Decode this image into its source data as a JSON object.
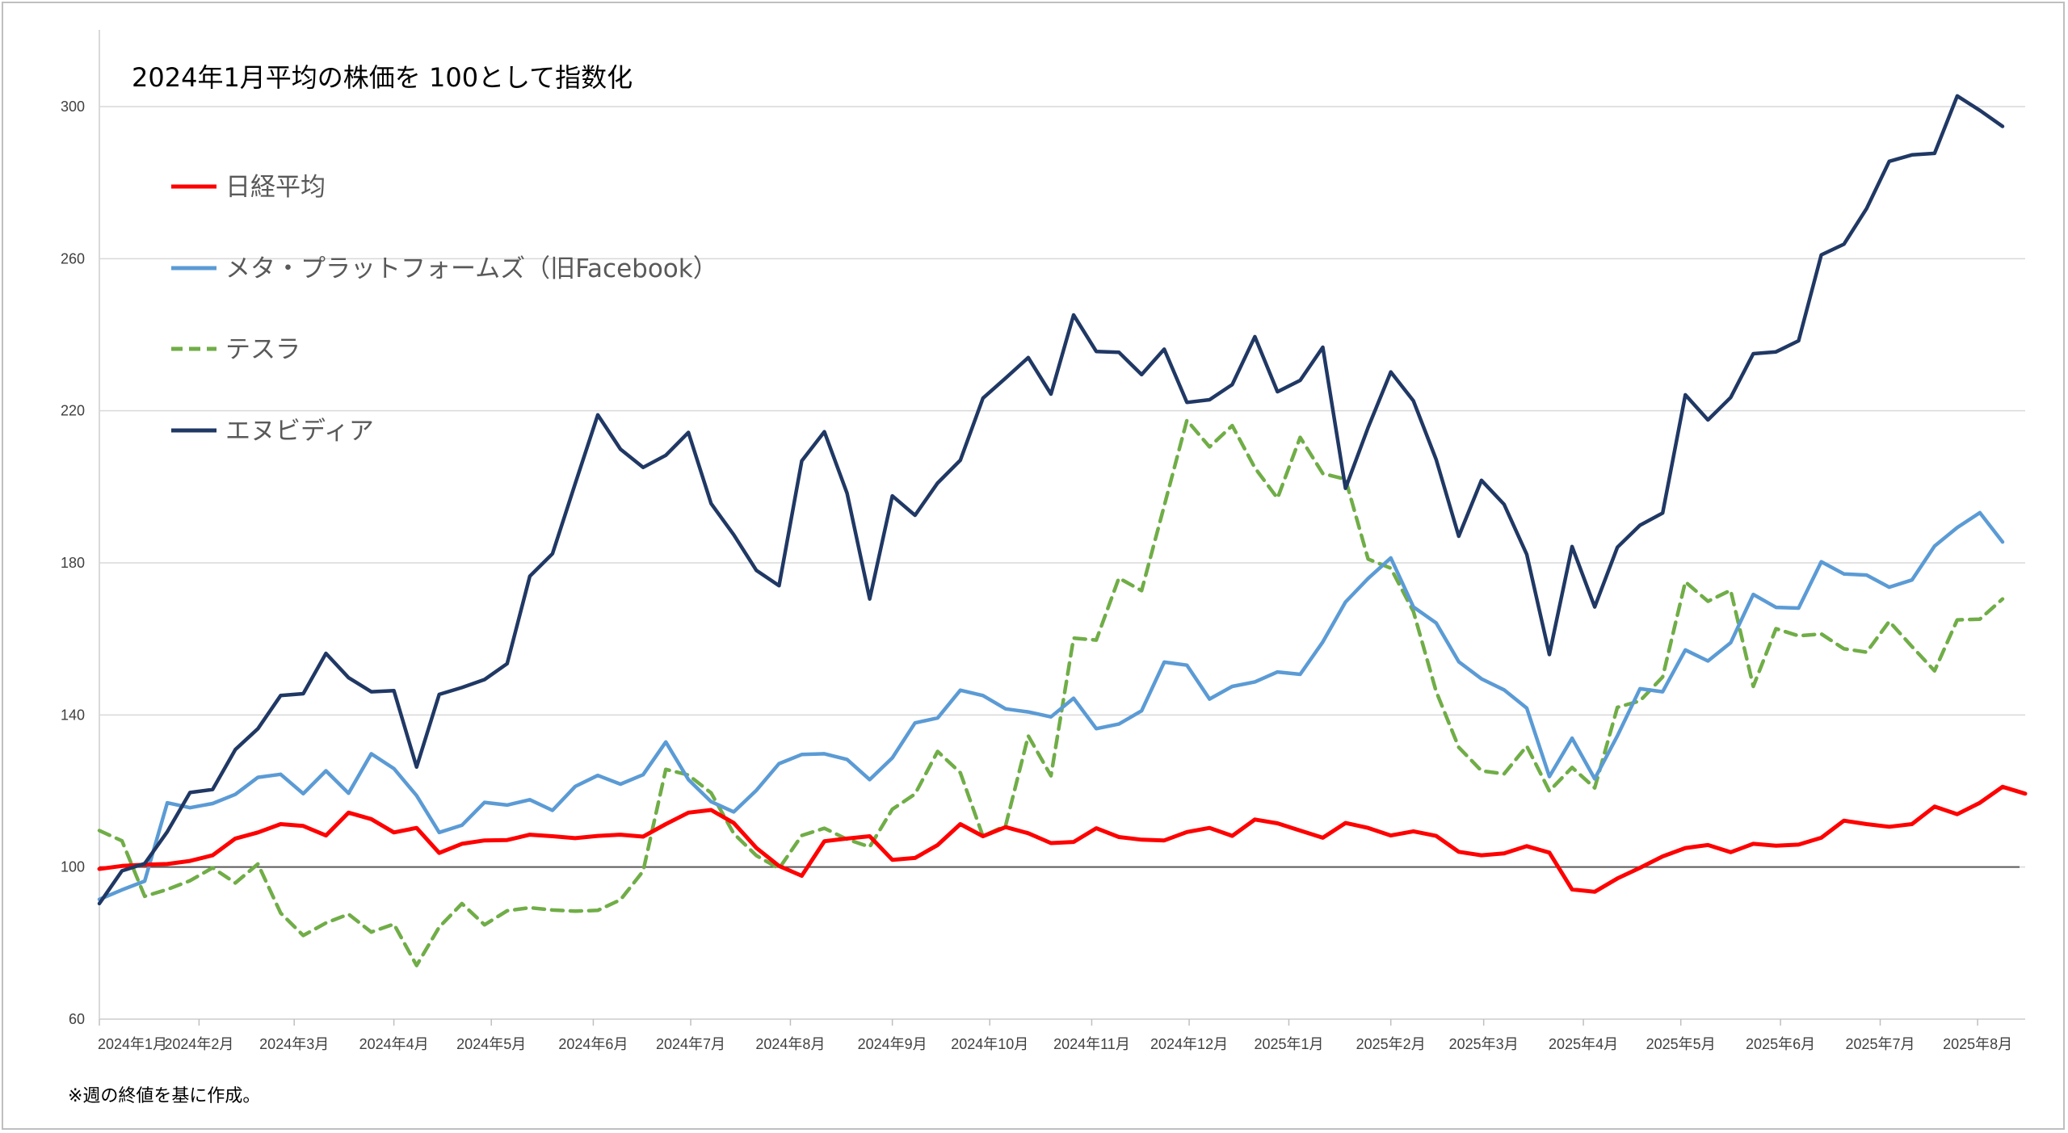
{
  "title": "2024年1月平均の株価を  100として指数化",
  "note": "※週の終値を基に作成。",
  "chart_data": {
    "type": "line",
    "title": "2024年1月平均の株価を  100として指数化",
    "xlabel": "",
    "ylabel": "",
    "ylim": [
      60,
      320
    ],
    "yticks": [
      60,
      100,
      140,
      180,
      220,
      260,
      300
    ],
    "baseline": 100,
    "grid": true,
    "legend_position": "top-left",
    "x_labels": [
      {
        "label": "2024年1月",
        "week": 0
      },
      {
        "label": "2024年2月",
        "week": 4.4
      },
      {
        "label": "2024年3月",
        "week": 8.6
      },
      {
        "label": "2024年4月",
        "week": 13
      },
      {
        "label": "2024年5月",
        "week": 17.3
      },
      {
        "label": "2024年6月",
        "week": 21.8
      },
      {
        "label": "2024年7月",
        "week": 26.1
      },
      {
        "label": "2024年8月",
        "week": 30.5
      },
      {
        "label": "2024年9月",
        "week": 35
      },
      {
        "label": "2024年10月",
        "week": 39.3
      },
      {
        "label": "2024年11月",
        "week": 43.8
      },
      {
        "label": "2024年12月",
        "week": 48.1
      },
      {
        "label": "2025年1月",
        "week": 52.5
      },
      {
        "label": "2025年2月",
        "week": 57
      },
      {
        "label": "2025年3月",
        "week": 61.1
      },
      {
        "label": "2025年4月",
        "week": 65.5
      },
      {
        "label": "2025年5月",
        "week": 69.8
      },
      {
        "label": "2025年6月",
        "week": 74.2
      },
      {
        "label": "2025年7月",
        "week": 78.6
      },
      {
        "label": "2025年8月",
        "week": 82.9
      }
    ],
    "x_max": 85,
    "series": [
      {
        "name": "日経平均",
        "color": "#ff0000",
        "dash": false,
        "values": [
          99.5,
          100.3,
          100.6,
          100.8,
          101.6,
          103.1,
          107.5,
          109.1,
          111.3,
          110.8,
          108.3,
          114.3,
          112.6,
          109.1,
          110.3,
          103.7,
          106.1,
          107.0,
          107.1,
          108.5,
          108.1,
          107.6,
          108.2,
          108.5,
          108.0,
          111.3,
          114.3,
          115.0,
          111.6,
          105.0,
          100.3,
          97.7,
          106.8,
          107.5,
          108.1,
          101.9,
          102.4,
          105.8,
          111.3,
          108.1,
          110.5,
          108.9,
          106.3,
          106.6,
          110.2,
          107.9,
          107.2,
          107.0,
          109.2,
          110.3,
          108.2,
          112.5,
          111.5,
          109.6,
          107.7,
          111.6,
          110.3,
          108.3,
          109.4,
          108.2,
          104.0,
          103.1,
          103.6,
          105.5,
          103.8,
          94.1,
          93.5,
          97.0,
          99.8,
          102.8,
          105.0,
          105.8,
          103.9,
          106.1,
          105.6,
          105.9,
          107.7,
          112.2,
          111.3,
          110.6,
          111.3,
          115.9,
          113.9,
          116.9,
          121.1,
          119.3
        ]
      },
      {
        "name": "メタ・プラットフォームズ（旧Facebook）",
        "color": "#5b9bd5",
        "dash": false,
        "values": [
          91.5,
          94.0,
          96.3,
          116.9,
          115.6,
          116.7,
          119.1,
          123.6,
          124.4,
          119.3,
          125.3,
          119.4,
          129.8,
          125.9,
          118.8,
          109.1,
          111.0,
          117.0,
          116.3,
          117.7,
          114.9,
          121.2,
          124.1,
          121.8,
          124.3,
          132.9,
          123.0,
          117.2,
          114.5,
          120.2,
          127.2,
          129.6,
          129.8,
          128.3,
          123.0,
          128.7,
          137.9,
          139.2,
          146.5,
          145.1,
          141.6,
          140.8,
          139.5,
          144.4,
          136.4,
          137.6,
          141.1,
          153.9,
          153.1,
          144.2,
          147.5,
          148.7,
          151.3,
          150.7,
          159.2,
          169.7,
          175.9,
          181.3,
          168.4,
          164.2,
          154.0,
          149.5,
          146.6,
          141.8,
          123.8,
          133.9,
          123.2,
          134.5,
          146.9,
          146.1,
          157.1,
          154.2,
          159.0,
          171.7,
          168.3,
          168.1,
          180.3,
          177.1,
          176.8,
          173.6,
          175.5,
          184.4,
          189.3,
          193.2,
          185.5
        ]
      },
      {
        "name": "テスラ",
        "color": "#70ad47",
        "dash": true,
        "values": [
          109.6,
          106.9,
          92.3,
          94.1,
          96.4,
          99.8,
          95.8,
          100.8,
          87.9,
          82.0,
          85.3,
          87.6,
          82.9,
          85.0,
          74.1,
          84.2,
          90.4,
          84.8,
          88.5,
          89.3,
          88.7,
          88.4,
          88.6,
          91.4,
          98.9,
          125.7,
          124.2,
          119.5,
          108.8,
          103.0,
          99.6,
          108.3,
          110.2,
          107.3,
          105.3,
          115.2,
          119.2,
          130.4,
          124.8,
          108.1,
          110.9,
          134.5,
          124.0,
          160.2,
          159.7,
          176.0,
          172.7,
          195.0,
          217.5,
          210.5,
          216.1,
          205.0,
          197.0,
          213.0,
          203.5,
          202.0,
          181.0,
          178.6,
          167.2,
          146.2,
          131.5,
          125.3,
          124.5,
          131.8,
          120.0,
          126.2,
          120.8,
          142.0,
          143.7,
          150.0,
          175.0,
          169.9,
          172.8,
          147.5,
          162.7,
          160.8,
          161.3,
          157.4,
          156.5,
          164.6,
          158.0,
          151.6,
          165.0,
          165.2,
          170.5
        ]
      },
      {
        "name": "エヌビディア",
        "color": "#203864",
        "dash": false,
        "values": [
          90.4,
          99.0,
          100.9,
          109.3,
          119.6,
          120.4,
          130.9,
          136.4,
          145.1,
          145.6,
          156.2,
          149.8,
          146.1,
          146.4,
          126.3,
          145.4,
          147.2,
          149.3,
          153.5,
          176.5,
          182.4,
          200.8,
          218.9,
          209.9,
          205.1,
          208.3,
          214.3,
          195.6,
          187.4,
          178.0,
          174.0,
          206.8,
          214.5,
          198.3,
          170.5,
          197.6,
          192.5,
          201.0,
          207.0,
          223.3,
          228.6,
          234.0,
          224.4,
          245.2,
          235.6,
          235.4,
          229.5,
          236.2,
          222.2,
          222.9,
          226.9,
          239.5,
          225.0,
          228.0,
          236.7,
          199.6,
          215.6,
          230.2,
          222.6,
          207.2,
          187.0,
          201.7,
          195.4,
          182.2,
          155.9,
          184.3,
          168.4,
          184.1,
          189.9,
          193.1,
          224.2,
          217.6,
          223.5,
          235.0,
          235.5,
          238.4,
          261.0,
          263.8,
          273.2,
          285.6,
          287.3,
          287.7,
          302.8,
          299.0,
          294.8
        ]
      }
    ]
  }
}
